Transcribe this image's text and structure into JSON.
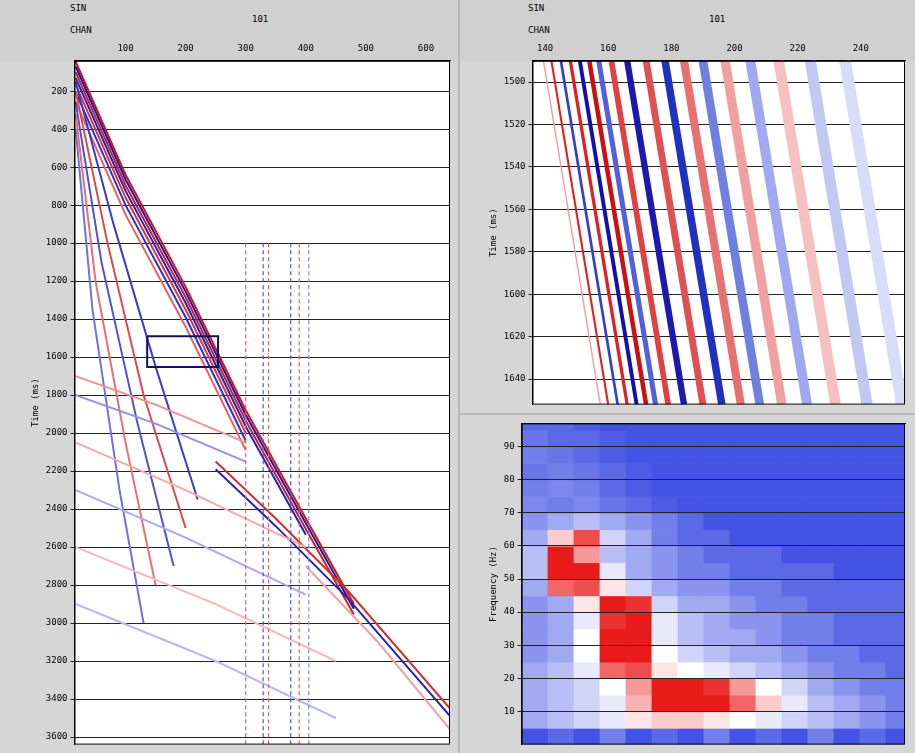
{
  "chart_data": [
    {
      "type": "line",
      "xlabel": "CHAN",
      "ylabel": "Time (ms)",
      "header": [
        {
          "label": "SIN",
          "text": "101"
        }
      ],
      "xlim": [
        15,
        640
      ],
      "xticks": [
        100,
        200,
        300,
        400,
        500,
        600
      ],
      "ylim": [
        3640,
        40
      ],
      "yticks": [
        200,
        400,
        600,
        800,
        1000,
        1200,
        1400,
        1600,
        1800,
        2000,
        2200,
        2400,
        2600,
        2800,
        3000,
        3200,
        3400,
        3600
      ],
      "grid": true,
      "marker": "none",
      "series": [
        {
          "color": "#e01010",
          "line_style": "solid",
          "x": [
            17,
            100,
            200,
            300,
            400,
            480
          ],
          "values": [
            45,
            640,
            1230,
            1880,
            2450,
            2900
          ]
        },
        {
          "color": "#1515b0",
          "line_style": "solid",
          "x": [
            17,
            100,
            200,
            300,
            400,
            480
          ],
          "values": [
            70,
            665,
            1255,
            1905,
            2475,
            2925
          ]
        },
        {
          "color": "#d02020",
          "line_style": "solid",
          "x": [
            17,
            100,
            200,
            300,
            400,
            480
          ],
          "values": [
            100,
            695,
            1285,
            1935,
            2505,
            2955
          ]
        },
        {
          "color": "#2020c0",
          "line_style": "solid",
          "x": [
            17,
            100,
            200,
            300,
            400
          ],
          "values": [
            130,
            725,
            1315,
            1965,
            2535
          ]
        },
        {
          "color": "#e03030",
          "line_style": "solid",
          "x": [
            17,
            100,
            200,
            300
          ],
          "values": [
            165,
            760,
            1350,
            2000
          ]
        },
        {
          "color": "#3030c8",
          "line_style": "solid",
          "x": [
            17,
            100,
            200,
            300
          ],
          "values": [
            205,
            800,
            1390,
            2040
          ]
        },
        {
          "color": "#e86060",
          "line_style": "solid",
          "x": [
            17,
            100,
            200,
            300
          ],
          "values": [
            255,
            850,
            1440,
            2090
          ]
        },
        {
          "color": "#3a3ad0",
          "line_style": "solid",
          "x": [
            17,
            80,
            150,
            220
          ],
          "values": [
            150,
            900,
            1650,
            2350
          ]
        },
        {
          "color": "#e04848",
          "line_style": "solid",
          "x": [
            17,
            70,
            130,
            200
          ],
          "values": [
            200,
            1000,
            1800,
            2500
          ]
        },
        {
          "color": "#5050d8",
          "line_style": "solid",
          "x": [
            17,
            60,
            120,
            180
          ],
          "values": [
            260,
            1100,
            1950,
            2700
          ]
        },
        {
          "color": "#e87070",
          "line_style": "solid",
          "x": [
            17,
            50,
            100,
            150
          ],
          "values": [
            320,
            1200,
            2050,
            2800
          ]
        },
        {
          "color": "#7070e0",
          "line_style": "solid",
          "x": [
            17,
            45,
            90,
            130
          ],
          "values": [
            400,
            1350,
            2300,
            3000
          ]
        },
        {
          "color": "#d03030",
          "line_style": "solid",
          "x": [
            250,
            350,
            470,
            640
          ],
          "values": [
            2150,
            2450,
            2830,
            3450
          ]
        },
        {
          "color": "#2525b8",
          "line_style": "solid",
          "x": [
            250,
            350,
            470,
            640
          ],
          "values": [
            2190,
            2490,
            2870,
            3490
          ]
        },
        {
          "color": "#f0a0a0",
          "line_style": "solid",
          "x": [
            400,
            520,
            640
          ],
          "values": [
            2700,
            3100,
            3560
          ]
        },
        {
          "color": "#f09090",
          "line_style": "solid",
          "x": [
            17,
            150,
            300
          ],
          "values": [
            1700,
            1850,
            2050
          ]
        },
        {
          "color": "#9090f0",
          "line_style": "solid",
          "x": [
            17,
            150,
            300
          ],
          "values": [
            1800,
            1950,
            2150
          ]
        },
        {
          "color": "#f4a8a8",
          "line_style": "solid",
          "x": [
            17,
            200,
            400
          ],
          "values": [
            2050,
            2300,
            2600
          ]
        },
        {
          "color": "#a8a8f4",
          "line_style": "solid",
          "x": [
            17,
            200,
            400
          ],
          "values": [
            2300,
            2550,
            2850
          ]
        },
        {
          "color": "#f6b8b8",
          "line_style": "solid",
          "x": [
            17,
            250,
            450
          ],
          "values": [
            2600,
            2900,
            3200
          ]
        },
        {
          "color": "#b8b8f6",
          "line_style": "solid",
          "x": [
            17,
            250,
            450
          ],
          "values": [
            2900,
            3200,
            3500
          ]
        },
        {
          "color": "#e06060",
          "line_style": "dashed",
          "x": [
            300,
            300
          ],
          "values": [
            1000,
            3640
          ]
        },
        {
          "color": "#5050d0",
          "line_style": "dashed",
          "x": [
            329,
            329
          ],
          "values": [
            1000,
            3640
          ]
        },
        {
          "color": "#e06060",
          "line_style": "dashed",
          "x": [
            338,
            338
          ],
          "values": [
            1000,
            3640
          ]
        },
        {
          "color": "#5050d0",
          "line_style": "dashed",
          "x": [
            375,
            375
          ],
          "values": [
            1000,
            3640
          ]
        },
        {
          "color": "#e06060",
          "line_style": "dashed",
          "x": [
            389,
            389
          ],
          "values": [
            1000,
            3640
          ]
        },
        {
          "color": "#8080e0",
          "line_style": "dashed",
          "x": [
            405,
            405
          ],
          "values": [
            1000,
            3640
          ]
        },
        {
          "color": "#101060",
          "line_style": "solid",
          "x": [
            136,
            254,
            254,
            136,
            136
          ],
          "values": [
            1490,
            1490,
            1652,
            1652,
            1490
          ]
        }
      ]
    },
    {
      "type": "line",
      "xlabel": "CHAN",
      "ylabel": "Time (ms)",
      "header": [
        {
          "label": "SIN",
          "text": "101"
        }
      ],
      "xlim": [
        136,
        254
      ],
      "xticks": [
        140,
        160,
        180,
        200,
        220,
        240
      ],
      "ylim": [
        1652,
        1490
      ],
      "yticks": [
        1500,
        1520,
        1540,
        1560,
        1580,
        1600,
        1620,
        1640
      ],
      "grid": true,
      "marker": "none",
      "series": [
        {
          "color": "#f4a0a0",
          "line_style": "solid",
          "x": [
            139.5,
            157.5
          ],
          "values": [
            1490,
            1652
          ]
        },
        {
          "color": "#e02020",
          "line_style": "solid",
          "x": [
            142,
            160
          ],
          "values": [
            1490,
            1652
          ]
        },
        {
          "color": "#3040d0",
          "line_style": "solid",
          "x": [
            145,
            163
          ],
          "values": [
            1490,
            1652
          ]
        },
        {
          "color": "#e02020",
          "line_style": "solid",
          "x": [
            148,
            166
          ],
          "values": [
            1490,
            1652
          ]
        },
        {
          "color": "#1010b0",
          "line_style": "solid",
          "x": [
            151,
            169
          ],
          "values": [
            1490,
            1652
          ]
        },
        {
          "color": "#cc1010",
          "line_style": "solid",
          "x": [
            154,
            172
          ],
          "values": [
            1490,
            1652
          ]
        },
        {
          "color": "#5060e0",
          "line_style": "solid",
          "x": [
            157,
            175
          ],
          "values": [
            1490,
            1652
          ]
        },
        {
          "color": "#e04040",
          "line_style": "solid",
          "x": [
            161,
            179
          ],
          "values": [
            1490,
            1652
          ]
        },
        {
          "color": "#1a1ab0",
          "line_style": "solid",
          "x": [
            166,
            184
          ],
          "values": [
            1490,
            1652
          ]
        },
        {
          "color": "#e05050",
          "line_style": "solid",
          "x": [
            172,
            190
          ],
          "values": [
            1490,
            1652
          ]
        },
        {
          "color": "#2030c0",
          "line_style": "solid",
          "x": [
            178,
            196
          ],
          "values": [
            1490,
            1652
          ]
        },
        {
          "color": "#e87070",
          "line_style": "solid",
          "x": [
            184,
            202
          ],
          "values": [
            1490,
            1652
          ]
        },
        {
          "color": "#7080e0",
          "line_style": "solid",
          "x": [
            190,
            208
          ],
          "values": [
            1490,
            1652
          ]
        },
        {
          "color": "#f0a0a0",
          "line_style": "solid",
          "x": [
            197,
            215
          ],
          "values": [
            1490,
            1652
          ]
        },
        {
          "color": "#a0a8f0",
          "line_style": "solid",
          "x": [
            205,
            223
          ],
          "values": [
            1490,
            1652
          ]
        },
        {
          "color": "#f6c0c0",
          "line_style": "solid",
          "x": [
            214,
            232
          ],
          "values": [
            1490,
            1652
          ]
        },
        {
          "color": "#c0c8f4",
          "line_style": "solid",
          "x": [
            224,
            242
          ],
          "values": [
            1490,
            1652
          ]
        },
        {
          "color": "#d8dcf8",
          "line_style": "solid",
          "x": [
            235,
            253
          ],
          "values": [
            1490,
            1652
          ]
        }
      ]
    },
    {
      "type": "heatmap",
      "ylabel": "Frequency (Hz)",
      "xlim": [
        136,
        254
      ],
      "ylim": [
        0,
        97
      ],
      "yticks": [
        10,
        20,
        30,
        40,
        50,
        60,
        70,
        80,
        90
      ],
      "grid": true,
      "tick_labels": "y",
      "heatmap": {
        "zlim": [
          0,
          1
        ],
        "x_edges": [
          136,
          144,
          152,
          160,
          168,
          176,
          184,
          192,
          200,
          208,
          216,
          224,
          232,
          240,
          248,
          256
        ],
        "y_edges": [
          0,
          5,
          10,
          15,
          20,
          25,
          30,
          35,
          40,
          45,
          50,
          55,
          60,
          65,
          70,
          75,
          80,
          85,
          90,
          95,
          100
        ],
        "cells": [
          [
            0.1,
            0.15,
            0.1,
            0.2,
            0.1,
            0.15,
            0.1,
            0.2,
            0.1,
            0.15,
            0.1,
            0.2,
            0.1,
            0.15,
            0.1
          ],
          [
            0.3,
            0.35,
            0.4,
            0.45,
            0.55,
            0.6,
            0.6,
            0.55,
            0.5,
            0.45,
            0.4,
            0.35,
            0.3,
            0.25,
            0.2
          ],
          [
            0.3,
            0.35,
            0.4,
            0.45,
            0.65,
            0.95,
            0.95,
            0.95,
            0.8,
            0.6,
            0.45,
            0.35,
            0.3,
            0.25,
            0.2
          ],
          [
            0.3,
            0.35,
            0.4,
            0.5,
            0.7,
            0.95,
            0.95,
            0.9,
            0.7,
            0.5,
            0.4,
            0.3,
            0.25,
            0.2,
            0.2
          ],
          [
            0.3,
            0.35,
            0.45,
            0.8,
            0.85,
            0.55,
            0.5,
            0.45,
            0.4,
            0.35,
            0.3,
            0.25,
            0.2,
            0.2,
            0.15
          ],
          [
            0.25,
            0.3,
            0.5,
            0.95,
            0.95,
            0.5,
            0.4,
            0.35,
            0.3,
            0.3,
            0.25,
            0.2,
            0.2,
            0.15,
            0.15
          ],
          [
            0.25,
            0.3,
            0.5,
            0.95,
            0.95,
            0.45,
            0.35,
            0.3,
            0.3,
            0.25,
            0.2,
            0.2,
            0.15,
            0.15,
            0.15
          ],
          [
            0.25,
            0.3,
            0.45,
            0.9,
            0.95,
            0.45,
            0.35,
            0.3,
            0.25,
            0.25,
            0.2,
            0.2,
            0.15,
            0.15,
            0.15
          ],
          [
            0.25,
            0.3,
            0.55,
            0.95,
            0.9,
            0.4,
            0.3,
            0.3,
            0.25,
            0.2,
            0.2,
            0.15,
            0.15,
            0.15,
            0.15
          ],
          [
            0.3,
            0.8,
            0.85,
            0.55,
            0.4,
            0.3,
            0.25,
            0.25,
            0.2,
            0.2,
            0.15,
            0.15,
            0.15,
            0.15,
            0.15
          ],
          [
            0.35,
            0.95,
            0.95,
            0.45,
            0.3,
            0.25,
            0.2,
            0.2,
            0.15,
            0.15,
            0.15,
            0.15,
            0.1,
            0.1,
            0.1
          ],
          [
            0.35,
            0.95,
            0.7,
            0.35,
            0.3,
            0.25,
            0.2,
            0.15,
            0.15,
            0.15,
            0.1,
            0.1,
            0.1,
            0.1,
            0.1
          ],
          [
            0.3,
            0.6,
            0.85,
            0.4,
            0.3,
            0.2,
            0.15,
            0.15,
            0.1,
            0.1,
            0.1,
            0.1,
            0.1,
            0.1,
            0.1
          ],
          [
            0.25,
            0.3,
            0.35,
            0.3,
            0.25,
            0.2,
            0.15,
            0.1,
            0.1,
            0.1,
            0.1,
            0.1,
            0.1,
            0.1,
            0.1
          ],
          [
            0.22,
            0.2,
            0.22,
            0.18,
            0.15,
            0.12,
            0.1,
            0.1,
            0.1,
            0.1,
            0.1,
            0.1,
            0.1,
            0.1,
            0.1
          ],
          [
            0.2,
            0.22,
            0.2,
            0.15,
            0.12,
            0.1,
            0.1,
            0.1,
            0.1,
            0.1,
            0.1,
            0.1,
            0.1,
            0.1,
            0.1
          ],
          [
            0.18,
            0.2,
            0.18,
            0.15,
            0.12,
            0.1,
            0.1,
            0.1,
            0.1,
            0.1,
            0.1,
            0.1,
            0.1,
            0.1,
            0.1
          ],
          [
            0.2,
            0.18,
            0.15,
            0.12,
            0.1,
            0.1,
            0.1,
            0.1,
            0.1,
            0.1,
            0.1,
            0.1,
            0.1,
            0.1,
            0.1
          ],
          [
            0.18,
            0.15,
            0.15,
            0.12,
            0.1,
            0.1,
            0.1,
            0.1,
            0.1,
            0.1,
            0.1,
            0.1,
            0.1,
            0.1,
            0.1
          ],
          [
            0.15,
            0.15,
            0.12,
            0.1,
            0.1,
            0.1,
            0.1,
            0.1,
            0.1,
            0.1,
            0.1,
            0.1,
            0.1,
            0.1,
            0.1
          ]
        ]
      }
    }
  ]
}
